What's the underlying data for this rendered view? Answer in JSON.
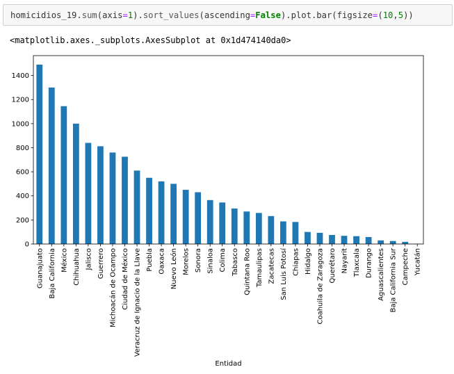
{
  "notebook": {
    "input_cell": {
      "segments": [
        {
          "text": "homicidios_19.",
          "cls": ""
        },
        {
          "text": "sum",
          "cls": "tok-fn"
        },
        {
          "text": "(axis",
          "cls": ""
        },
        {
          "text": "=",
          "cls": "tok-op"
        },
        {
          "text": "1",
          "cls": "tok-num"
        },
        {
          "text": ").",
          "cls": ""
        },
        {
          "text": "sort_values",
          "cls": "tok-fn"
        },
        {
          "text": "(ascending",
          "cls": ""
        },
        {
          "text": "=",
          "cls": "tok-op"
        },
        {
          "text": "False",
          "cls": "tok-kw"
        },
        {
          "text": ").plot.bar(figsize",
          "cls": ""
        },
        {
          "text": "=",
          "cls": "tok-op"
        },
        {
          "text": "(",
          "cls": ""
        },
        {
          "text": "10",
          "cls": "tok-num"
        },
        {
          "text": ",",
          "cls": ""
        },
        {
          "text": "5",
          "cls": "tok-num"
        },
        {
          "text": "))",
          "cls": ""
        }
      ]
    },
    "output_text": "<matplotlib.axes._subplots.AxesSubplot at 0x1d474140da0>"
  },
  "chart_data": {
    "type": "bar",
    "categories": [
      "Guanajuato",
      "Baja California",
      "México",
      "Chihuahua",
      "Jalisco",
      "Guerrero",
      "Michoacán de Ocampo",
      "Ciudad de México",
      "Veracruz de Ignacio de la Llave",
      "Puebla",
      "Oaxaca",
      "Nuevo León",
      "Morelos",
      "Sonora",
      "Sinaloa",
      "Colima",
      "Tabasco",
      "Quintana Roo",
      "Tamaulipas",
      "Zacatecas",
      "San Luis Potosí",
      "Chiapas",
      "Hidalgo",
      "Coahuila de Zaragoza",
      "Querétaro",
      "Nayarit",
      "Tlaxcala",
      "Durango",
      "Aguascalientes",
      "Baja California Sur",
      "Campeche",
      "Yucatán"
    ],
    "values": [
      1490,
      1300,
      1145,
      1000,
      840,
      812,
      760,
      725,
      610,
      550,
      520,
      500,
      450,
      430,
      365,
      345,
      295,
      270,
      258,
      232,
      188,
      183,
      100,
      93,
      75,
      68,
      65,
      58,
      30,
      25,
      18,
      2
    ],
    "xlabel": "Entidad",
    "ylabel": "",
    "ylim": [
      0,
      1565
    ],
    "yticks": [
      0,
      200,
      400,
      600,
      800,
      1000,
      1200,
      1400
    ],
    "bar_color": "#1f77b4",
    "grid": false
  }
}
